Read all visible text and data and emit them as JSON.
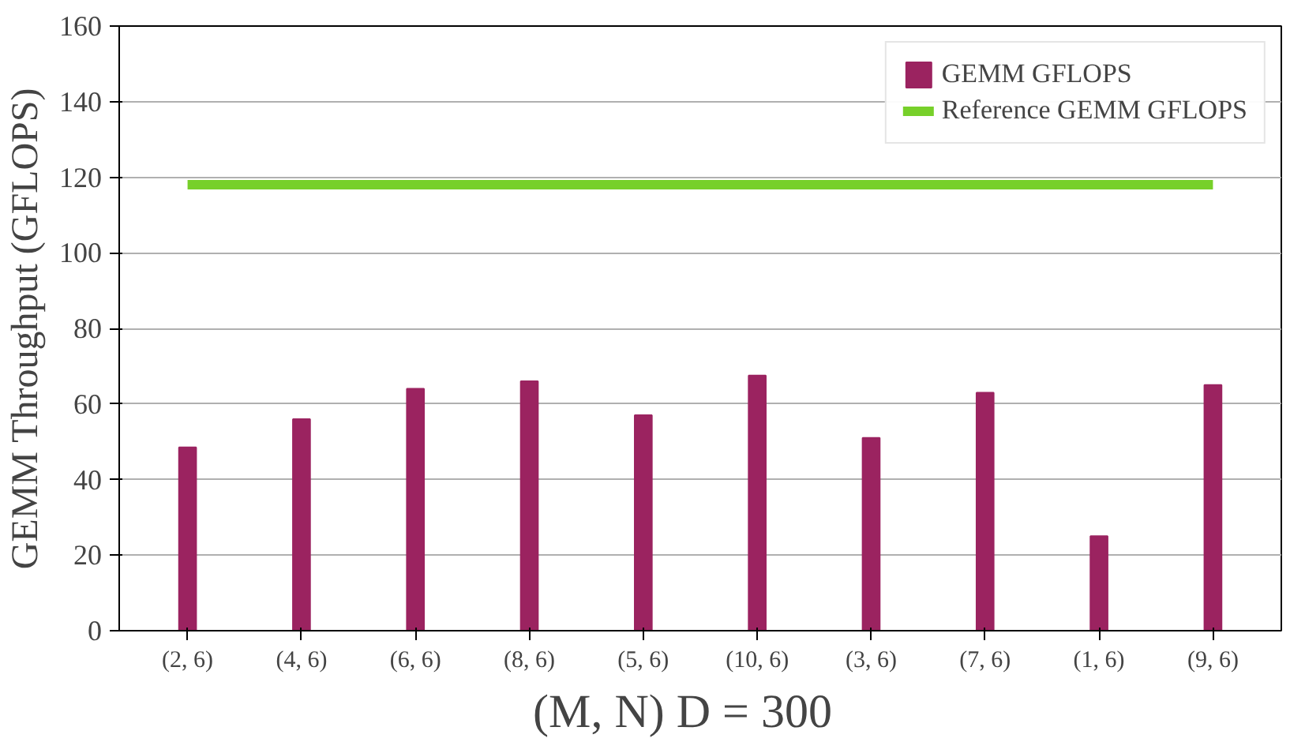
{
  "chart_data": {
    "type": "bar",
    "xlabel": "(M, N)    D = 300",
    "ylabel": "GEMM Throughput (GFLOPS)",
    "categories": [
      "(2, 6)",
      "(4, 6)",
      "(6, 6)",
      "(8, 6)",
      "(5, 6)",
      "(10, 6)",
      "(3, 6)",
      "(7, 6)",
      "(1, 6)",
      "(9, 6)"
    ],
    "series": [
      {
        "name": "GEMM GFLOPS",
        "color": "#9b2360",
        "values": [
          48.5,
          56,
          64,
          66,
          57,
          67.5,
          51,
          63,
          25,
          65
        ]
      },
      {
        "name": "Reference GEMM GFLOPS",
        "type": "line",
        "color": "#77d02a",
        "values": [
          118,
          118,
          118,
          118,
          118,
          118,
          118,
          118,
          118,
          118
        ]
      }
    ],
    "ylim": [
      0,
      160
    ],
    "yticks": [
      0,
      20,
      40,
      60,
      80,
      100,
      120,
      140,
      160
    ],
    "grid": "y",
    "legend": "top right"
  }
}
